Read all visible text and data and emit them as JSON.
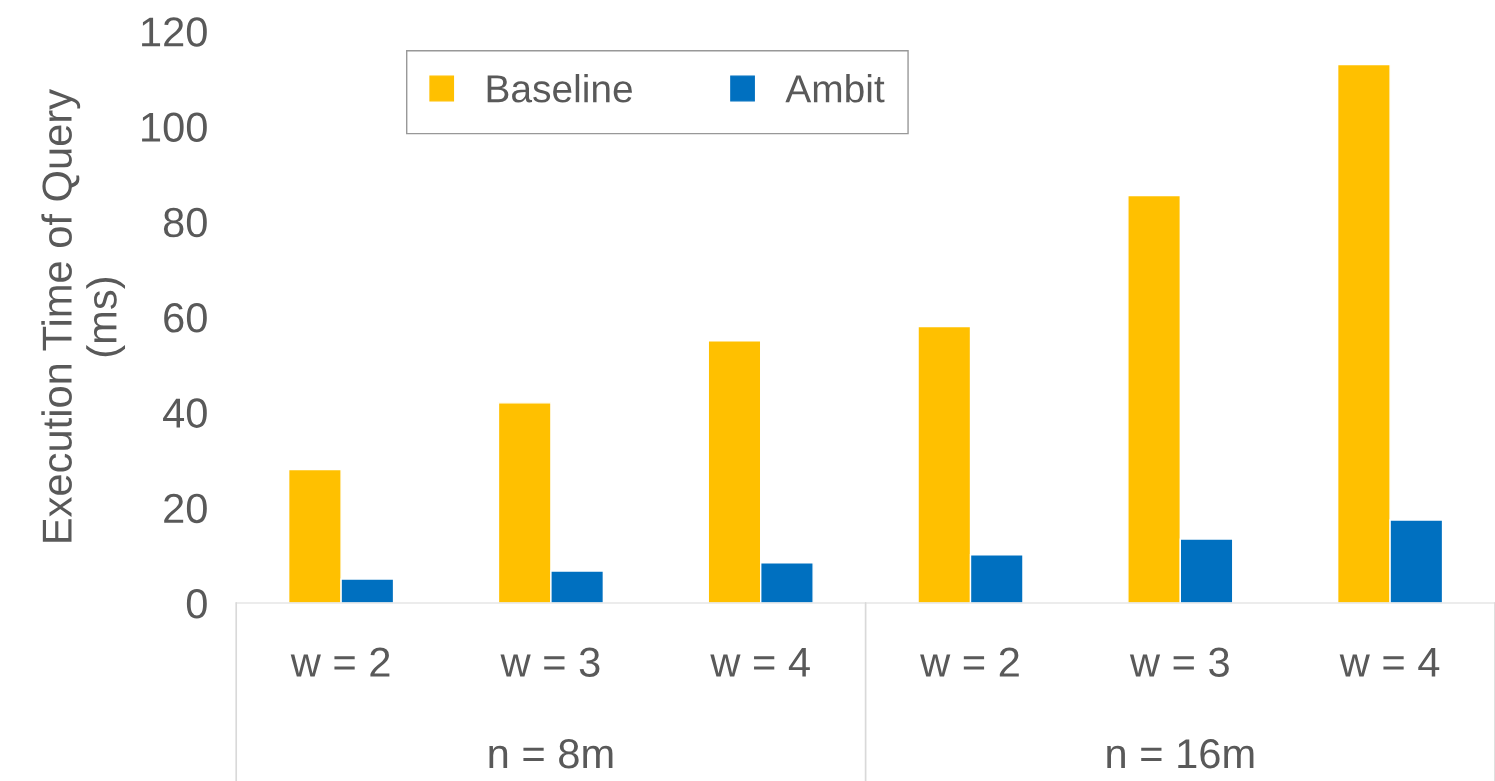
{
  "chart_data": {
    "type": "bar",
    "ylabel": "Execution Time of Query\n(ms)",
    "categories": [
      "w = 2",
      "w = 3",
      "w = 4",
      "w = 2",
      "w = 3",
      "w = 4"
    ],
    "series": [
      {
        "name": "Baseline",
        "color": "#ffc000",
        "values": [
          28,
          42,
          55,
          58,
          85.5,
          113
        ]
      },
      {
        "name": "Ambit",
        "color": "#0070c0",
        "values": [
          5,
          6.7,
          8.4,
          10.1,
          13.4,
          17.4
        ]
      }
    ],
    "ylim": [
      0,
      120
    ],
    "yticks": [
      0,
      20,
      40,
      60,
      80,
      100,
      120
    ],
    "grid": false,
    "legend": "top",
    "annotations": [
      "n = 8m",
      "n = 16m"
    ]
  }
}
